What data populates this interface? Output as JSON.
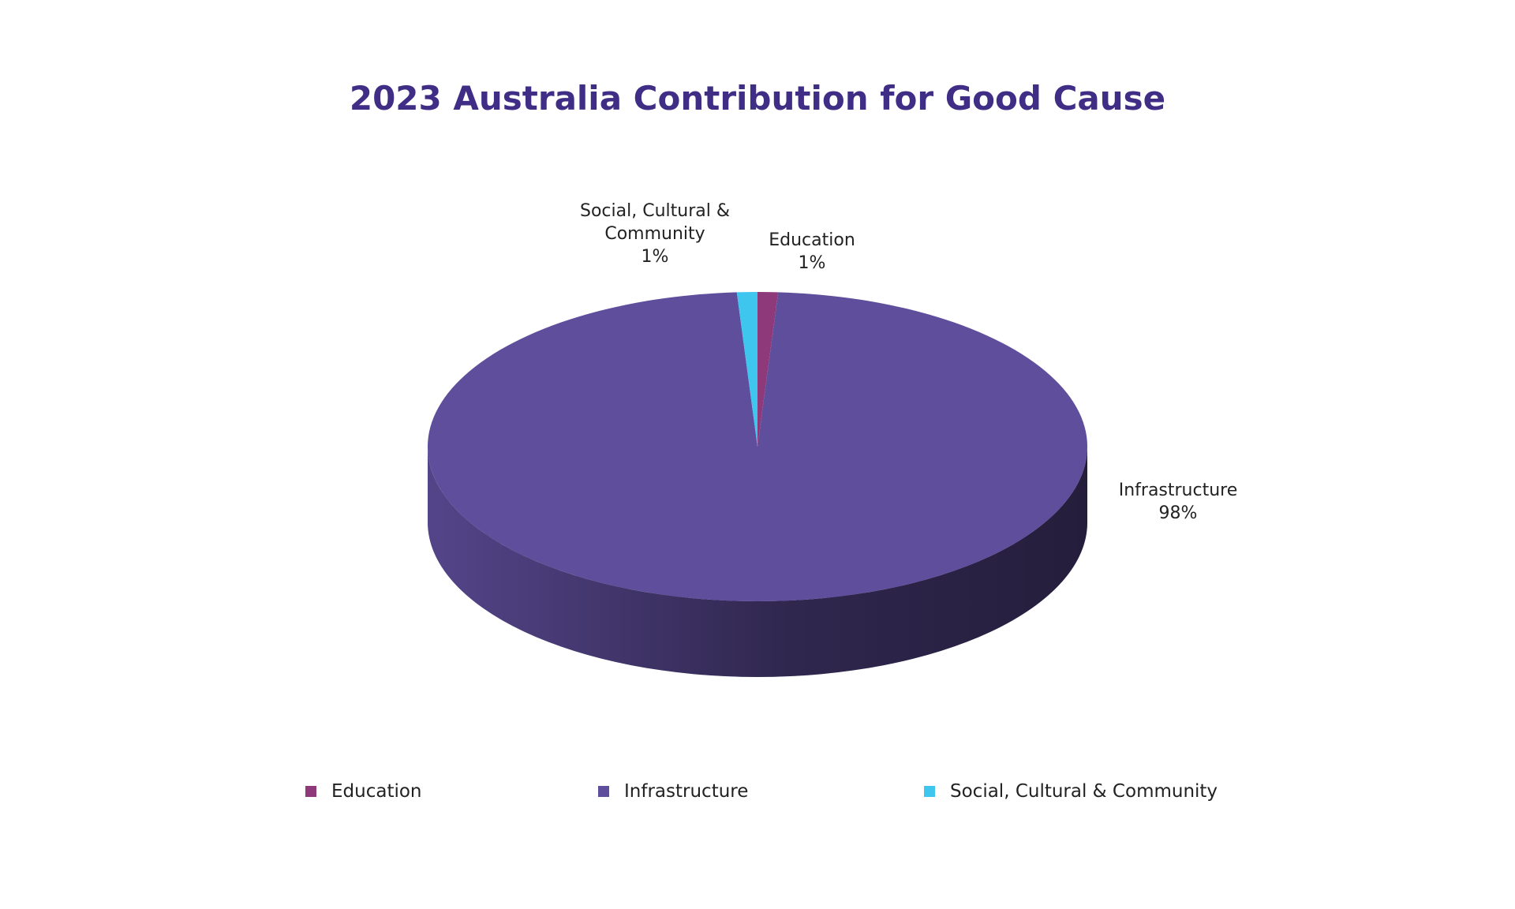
{
  "chart_data": {
    "type": "pie",
    "title": "2023 Australia Contribution for Good Cause",
    "categories": [
      "Education",
      "Infrastructure",
      "Social, Cultural & Community"
    ],
    "values": [
      1,
      98,
      1
    ],
    "value_labels": [
      "1%",
      "98%",
      "1%"
    ],
    "colors": [
      "#8e3a7a",
      "#5f4e9c",
      "#3ec6ee"
    ],
    "legend": "bottom"
  }
}
